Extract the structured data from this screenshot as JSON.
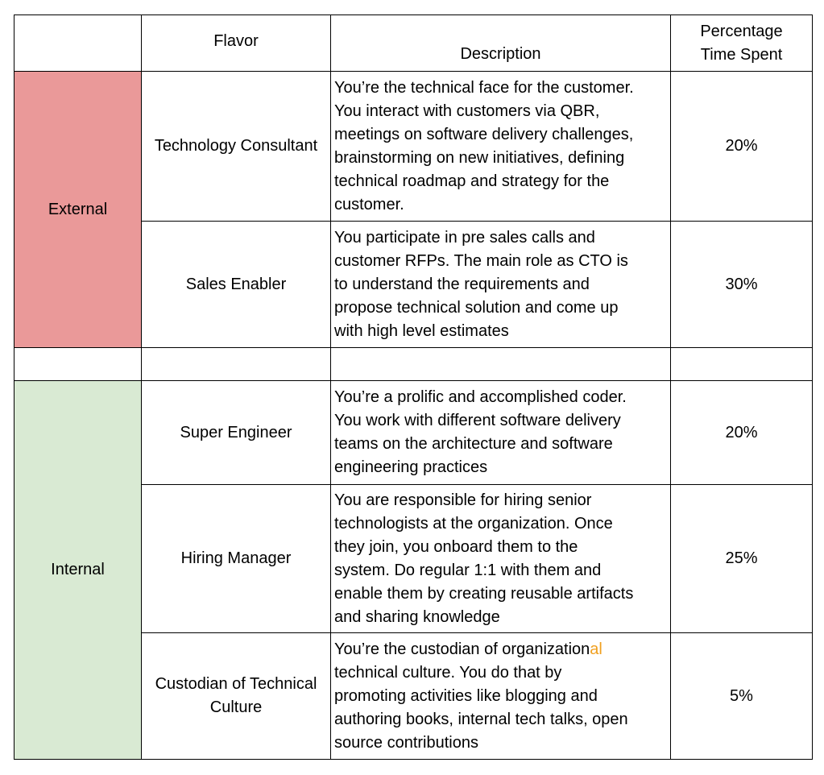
{
  "header": {
    "corner": "",
    "flavor": "Flavor",
    "description": "Description",
    "percentage": "Percentage Time Spent"
  },
  "groups": [
    {
      "label": "External",
      "color": "#ea9999"
    },
    {
      "label": "Internal",
      "color": "#d9ead3"
    }
  ],
  "rows": [
    {
      "flavor": "Technology Consultant",
      "percentage": "20%",
      "description_lines": [
        "You’re the technical face for the customer.",
        "You interact with customers via QBR,",
        "meetings on software delivery challenges,",
        "brainstorming on new initiatives, defining",
        "technical roadmap and strategy for the",
        "customer."
      ]
    },
    {
      "flavor": "Sales Enabler",
      "percentage": "30%",
      "description_lines": [
        "You participate in pre sales calls and",
        "customer RFPs. The main role as CTO is",
        "to understand the requirements and",
        "propose technical solution and come up",
        "with high level estimates"
      ]
    },
    {
      "flavor": "Super Engineer",
      "percentage": "20%",
      "description_lines": [
        "You’re a prolific and accomplished coder.",
        "You work with different software delivery",
        "teams on the architecture and software",
        "engineering practices"
      ]
    },
    {
      "flavor": "Hiring Manager",
      "percentage": "25%",
      "description_lines": [
        "You are responsible for hiring senior",
        "technologists at the organization. Once",
        "they join, you onboard them to the",
        "system. Do regular 1:1 with them and",
        "enable them by creating reusable artifacts",
        "and sharing knowledge"
      ]
    },
    {
      "flavor": "Custodian of Technical Culture",
      "percentage": "5%",
      "description_first_line_plain": "You’re the custodian of organization",
      "description_first_line_highlight": "al",
      "highlight_color": "#f0a020",
      "description_lines": [
        "technical culture. You do that by",
        "promoting activities like blogging and",
        "authoring books, internal tech talks, open",
        "source contributions"
      ]
    }
  ]
}
